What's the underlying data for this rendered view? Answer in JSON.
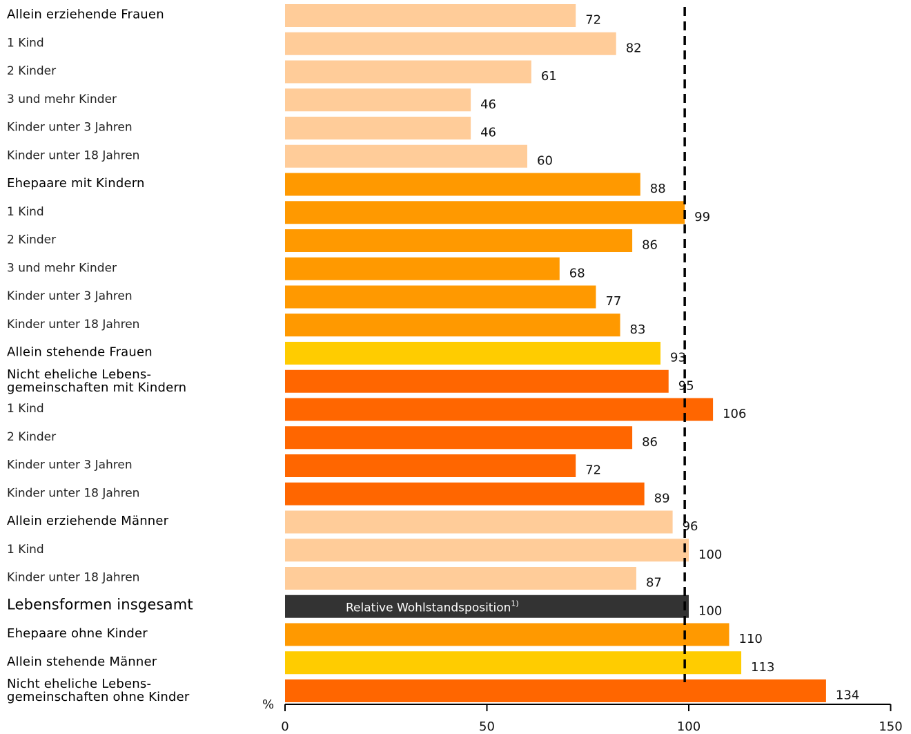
{
  "chart_data": {
    "type": "bar",
    "orientation": "horizontal",
    "title": "",
    "xlabel": "",
    "ylabel": "",
    "unit_label": "%",
    "xlim": [
      0,
      150
    ],
    "xticks": [
      0,
      50,
      100,
      150
    ],
    "reference_line": {
      "value": 99,
      "style": "dashed"
    },
    "inbar_annotation": {
      "text": "Relative Wohlstandsposition",
      "superscript": "1)"
    },
    "colors": {
      "light_orange": "#ffcc99",
      "orange": "#ff9900",
      "yellow": "#ffcc00",
      "dark_orange": "#ff6600",
      "dark_gray": "#333333"
    },
    "categories": [
      {
        "label": "Allein erziehende Frauen",
        "value": 72,
        "color": "light_orange",
        "group": true
      },
      {
        "label": "1 Kind",
        "value": 82,
        "color": "light_orange",
        "group": false
      },
      {
        "label": "2 Kinder",
        "value": 61,
        "color": "light_orange",
        "group": false
      },
      {
        "label": "3 und mehr Kinder",
        "value": 46,
        "color": "light_orange",
        "group": false
      },
      {
        "label": "Kinder unter 3 Jahren",
        "value": 46,
        "color": "light_orange",
        "group": false
      },
      {
        "label": "Kinder unter 18 Jahren",
        "value": 60,
        "color": "light_orange",
        "group": false
      },
      {
        "label": "Ehepaare mit Kindern",
        "value": 88,
        "color": "orange",
        "group": true
      },
      {
        "label": "1 Kind",
        "value": 99,
        "color": "orange",
        "group": false
      },
      {
        "label": "2 Kinder",
        "value": 86,
        "color": "orange",
        "group": false
      },
      {
        "label": "3 und mehr Kinder",
        "value": 68,
        "color": "orange",
        "group": false
      },
      {
        "label": "Kinder unter 3 Jahren",
        "value": 77,
        "color": "orange",
        "group": false
      },
      {
        "label": "Kinder unter 18 Jahren",
        "value": 83,
        "color": "orange",
        "group": false
      },
      {
        "label": "Allein stehende Frauen",
        "value": 93,
        "color": "yellow",
        "group": true
      },
      {
        "label": "Nicht eheliche Lebens-\ngemeinschaften mit Kindern",
        "value": 95,
        "color": "dark_orange",
        "group": true
      },
      {
        "label": "1 Kind",
        "value": 106,
        "color": "dark_orange",
        "group": false
      },
      {
        "label": "2 Kinder",
        "value": 86,
        "color": "dark_orange",
        "group": false
      },
      {
        "label": "Kinder unter 3 Jahren",
        "value": 72,
        "color": "dark_orange",
        "group": false
      },
      {
        "label": "Kinder unter 18 Jahren",
        "value": 89,
        "color": "dark_orange",
        "group": false
      },
      {
        "label": "Allein erziehende Männer",
        "value": 96,
        "color": "light_orange",
        "group": true
      },
      {
        "label": "1 Kind",
        "value": 100,
        "color": "light_orange",
        "group": false
      },
      {
        "label": "Kinder unter 18 Jahren",
        "value": 87,
        "color": "light_orange",
        "group": false
      },
      {
        "label": "Lebensformen insgesamt",
        "value": 100,
        "color": "dark_gray",
        "group": true,
        "large": true,
        "inbar": true
      },
      {
        "label": "Ehepaare ohne Kinder",
        "value": 110,
        "color": "orange",
        "group": true
      },
      {
        "label": "Allein stehende Männer",
        "value": 113,
        "color": "yellow",
        "group": true
      },
      {
        "label": "Nicht eheliche Lebens-\ngemeinschaften ohne Kinder",
        "value": 134,
        "color": "dark_orange",
        "group": true
      }
    ]
  }
}
